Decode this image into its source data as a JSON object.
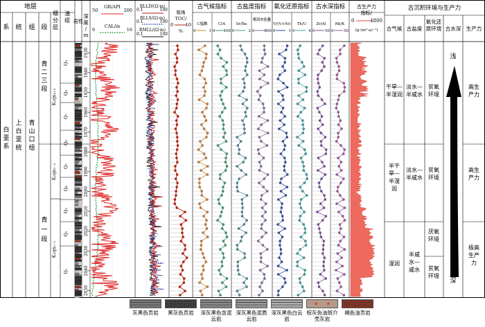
{
  "headers": {
    "stratum": "地层",
    "system": "系",
    "series": "统",
    "group": "组",
    "segment": "段",
    "sublayer": "细分层",
    "oil_group": "油组",
    "lithology": "岩性",
    "depth": "深度/m",
    "paleoclimate": "古气候指标",
    "paleosalinity": "古盐度指标",
    "redox": "氧化还原指标",
    "paleodepth": "古水深指标",
    "productivity": "古生产力",
    "productivity_sub": "指标/",
    "productivity_unit": "(g·(m²·a)⁻¹)",
    "env": "古沉积环境与生产力",
    "env_climate": "古气候",
    "env_salinity": "古盐度",
    "env_redox": "氧化还原环境",
    "env_depth": "古水深",
    "env_prod": "生产力"
  },
  "strat": {
    "system": "白垩系",
    "series": "上白垩统",
    "group": "青山口组",
    "seg_upper": "青二三段",
    "seg_lower": "青一段"
  },
  "sublayers": [
    "K₂qn₂₊₃",
    "K₂qn₁₋₃",
    "K₂qn₁₋₁"
  ],
  "oil_groups": [
    "Q₉",
    "Q₈",
    "Q₇",
    "Q₆",
    "Q₅",
    "Q₄",
    "Q₃",
    "Q₂",
    "Q₁"
  ],
  "depth_ticks": [
    "1930",
    "1940",
    "1950",
    "1960",
    "1970",
    "1980",
    "1990",
    "2000",
    "2010",
    "2020",
    "2030",
    "2040",
    "2050"
  ],
  "log_headers": {
    "gr": "GR/API",
    "gr_min": "50",
    "gr_max": "200",
    "cal": "CAL/in",
    "cal_min": "6",
    "cal_max": "16",
    "rlld": "RLLD/(Ω·m)",
    "rlls": "RLLS/(Ω·m)",
    "rmll": "RMLL/(Ω·m)",
    "r_min": "0.1",
    "r_max": "100",
    "toc": "现场TOC/%",
    "toc_min": "0",
    "toc_max": "10"
  },
  "proxy_headers": [
    {
      "name": "C指数",
      "min": "0",
      "max": "1"
    },
    {
      "name": "CIA",
      "min": "0",
      "max": "100"
    },
    {
      "name": "Sr/Ba",
      "min": "0",
      "max": "2"
    },
    {
      "name": "相对B含量",
      "min": "0",
      "max": "500"
    },
    {
      "name": "V/(V+Ni)",
      "min": "0",
      "max": "1"
    },
    {
      "name": "Th/U",
      "min": "0",
      "max": "6"
    },
    {
      "name": "Zr/Al",
      "min": "0",
      "max": "50"
    },
    {
      "name": "Rb/K",
      "min": "0",
      "max": "50"
    }
  ],
  "productivity_range": {
    "min": "0",
    "max": "4800"
  },
  "env_rows": [
    {
      "climate": "干旱—半湿润",
      "salinity": "淡水—半咸水",
      "redox": "贫氧环境",
      "prod": "高生产力"
    },
    {
      "climate": "半干旱—半湿润",
      "salinity": "淡水—半咸水",
      "redox": "贫氧环境",
      "prod": "高生产力"
    },
    {
      "climate": "湿润",
      "salinity": "半咸水—咸水",
      "redox_a": "厌氧环境",
      "redox_b": "贫氧环境",
      "prod": "极高生产力"
    }
  ],
  "depth_labels": {
    "top": "浅",
    "bottom": "深"
  },
  "legend": [
    {
      "label": "灰黑色页岩",
      "color": "#7a7a7a"
    },
    {
      "label": "黑灰色页岩",
      "color": "#3a3a3a"
    },
    {
      "label": "深灰黑色含泥云岩",
      "color": "#8a8a8a"
    },
    {
      "label": "深灰黑色泥质云岩",
      "color": "#9a9a9a"
    },
    {
      "label": "深灰黑色白云岩",
      "color": "#b0b0b0"
    },
    {
      "label": "棕灰色油斑介壳灰岩",
      "color": "#b59a8a"
    },
    {
      "label": "褐色油页岩",
      "color": "#8b2e1e"
    }
  ],
  "colors": {
    "gr": "#e02020",
    "cal": "#1a9a3a",
    "rlld": "#c01010",
    "rlls": "#1a3aa0",
    "rmll": "#101010",
    "toc": "#b02010",
    "prod_fill": "#ee6a5e"
  }
}
